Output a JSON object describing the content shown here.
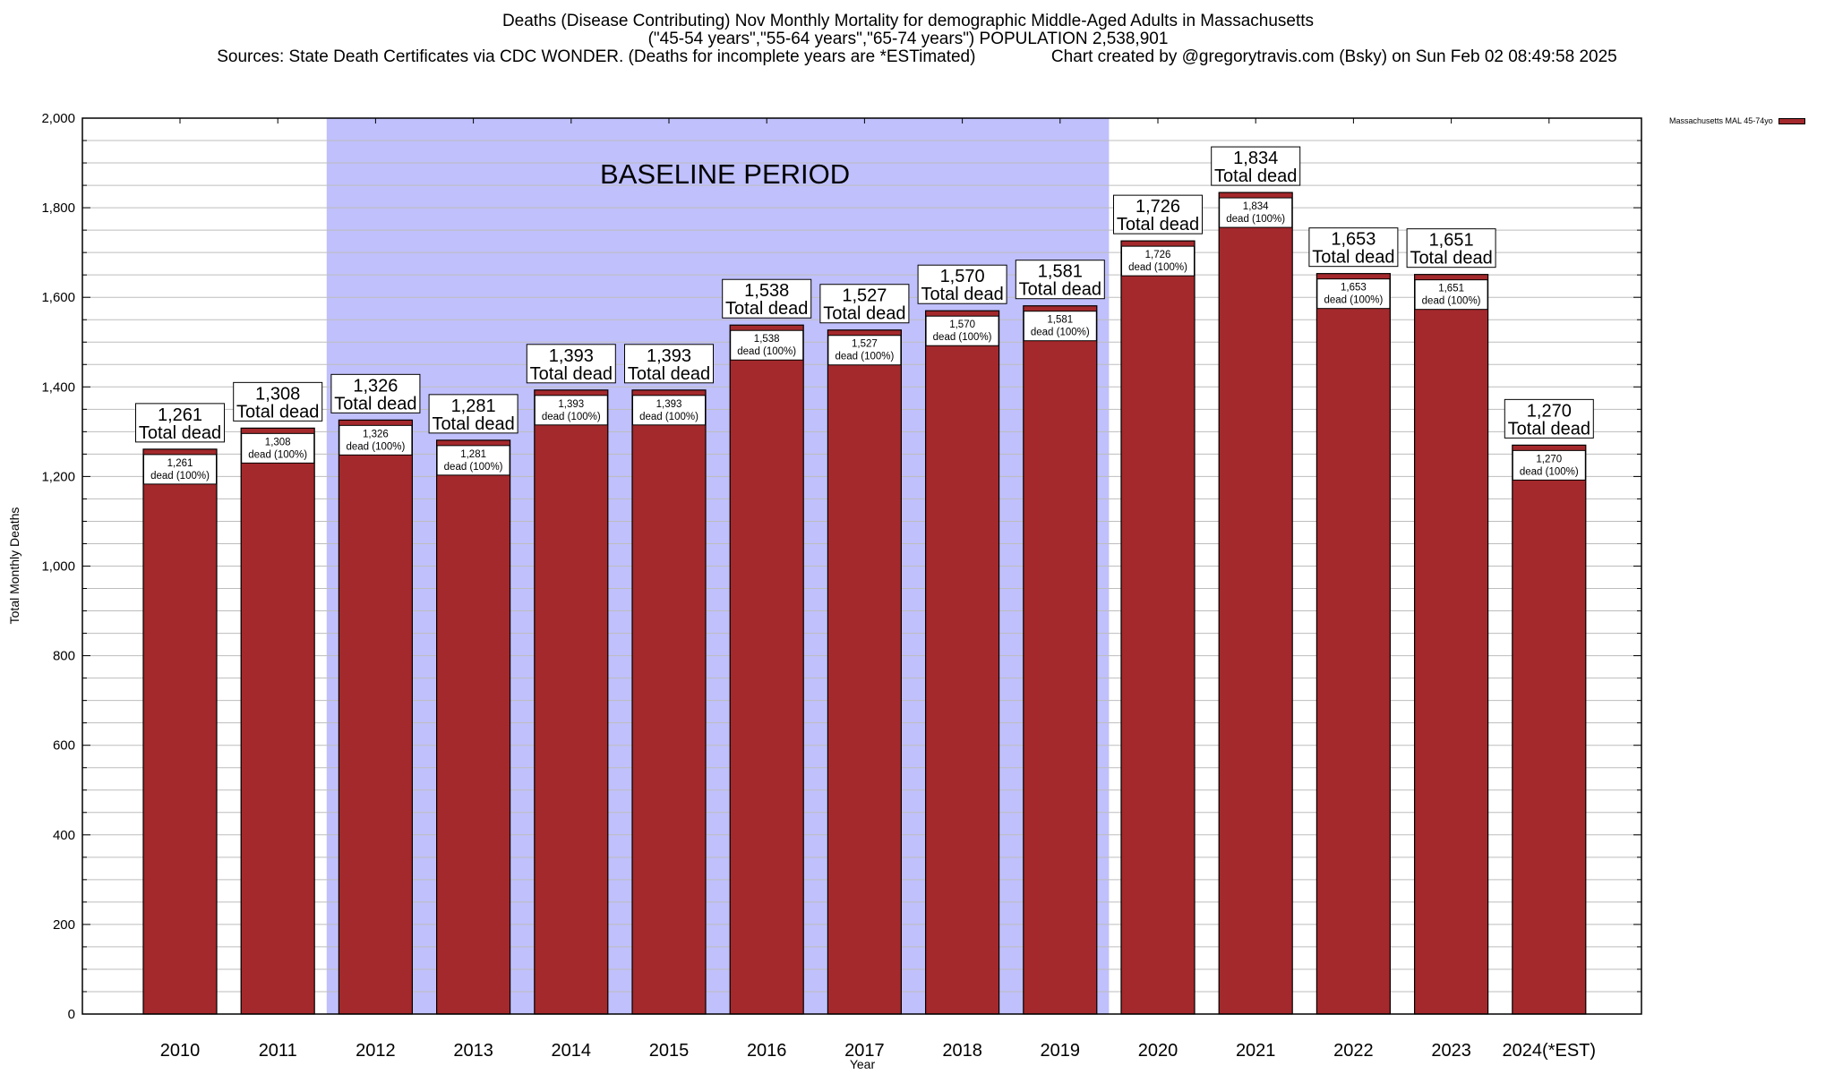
{
  "title": {
    "line1": "Deaths (Disease Contributing) Nov Monthly Mortality for demographic Middle-Aged Adults in Massachusetts",
    "line2": "(\"45-54 years\",\"55-64 years\",\"65-74 years\") POPULATION 2,538,901",
    "line3": "Sources: State Death Certificates via CDC WONDER. (Deaths for incomplete years are *ESTimated)                Chart created by @gregorytravis.com (Bsky) on Sun Feb 02 08:49:58 2025"
  },
  "legend": {
    "label": "Massachusetts MAL 45-74yo",
    "color": "#a4292c"
  },
  "colors": {
    "bar": "#a4292c",
    "baseline": "#c0c0fc",
    "grid": "#bdbdbd"
  },
  "chart_data": {
    "type": "bar",
    "title": "Deaths (Disease Contributing) Nov Monthly Mortality for demographic Middle-Aged Adults in Massachusetts",
    "xlabel": "Year",
    "ylabel": "Total Monthly Deaths",
    "ylim": [
      0,
      2000
    ],
    "yticks": [
      0,
      200,
      400,
      600,
      800,
      1000,
      1200,
      1400,
      1600,
      1800,
      2000
    ],
    "ytick_labels": [
      "0",
      "200",
      "400",
      "600",
      "800",
      "1,000",
      "1,200",
      "1,400",
      "1,600",
      "1,800",
      "2,000"
    ],
    "grid": true,
    "legend_position": "top-right",
    "categories": [
      "2010",
      "2011",
      "2012",
      "2013",
      "2014",
      "2015",
      "2016",
      "2017",
      "2018",
      "2019",
      "2020",
      "2021",
      "2022",
      "2023",
      "2024(*EST)"
    ],
    "series": [
      {
        "name": "Massachusetts MAL 45-74yo",
        "values": [
          1261,
          1308,
          1326,
          1281,
          1393,
          1393,
          1538,
          1527,
          1570,
          1581,
          1726,
          1834,
          1653,
          1651,
          1270
        ]
      }
    ],
    "top_labels": [
      "1,261",
      "1,308",
      "1,326",
      "1,281",
      "1,393",
      "1,393",
      "1,538",
      "1,527",
      "1,570",
      "1,581",
      "1,726",
      "1,834",
      "1,653",
      "1,651",
      "1,270"
    ],
    "top_label_suffix": "Total dead",
    "inner_label_suffix": "dead (100%)",
    "annotation": {
      "text": "BASELINE PERIOD",
      "from_category": "2012",
      "to_category": "2019"
    }
  }
}
